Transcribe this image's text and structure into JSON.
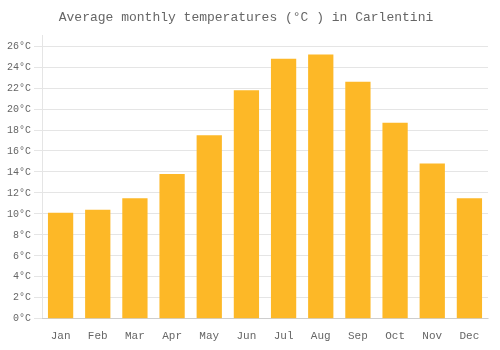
{
  "chart_data": {
    "type": "bar",
    "title": "Average monthly temperatures (°C ) in Carlentini",
    "categories": [
      "Jan",
      "Feb",
      "Mar",
      "Apr",
      "May",
      "Jun",
      "Jul",
      "Aug",
      "Sep",
      "Oct",
      "Nov",
      "Dec"
    ],
    "values": [
      10.1,
      10.4,
      11.5,
      13.8,
      17.5,
      21.8,
      24.8,
      25.2,
      22.6,
      18.7,
      14.8,
      11.5
    ],
    "color": "#FDB827",
    "ylim": [
      0,
      27
    ],
    "yticks": [
      {
        "value": 0,
        "label": "0°C"
      },
      {
        "value": 2,
        "label": "2°C"
      },
      {
        "value": 4,
        "label": "4°C"
      },
      {
        "value": 6,
        "label": "6°C"
      },
      {
        "value": 8,
        "label": "8°C"
      },
      {
        "value": 10,
        "label": "10°C"
      },
      {
        "value": 12,
        "label": "12°C"
      },
      {
        "value": 14,
        "label": "14°C"
      },
      {
        "value": 16,
        "label": "16°C"
      },
      {
        "value": 18,
        "label": "18°C"
      },
      {
        "value": 20,
        "label": "20°C"
      },
      {
        "value": 22,
        "label": "22°C"
      },
      {
        "value": 24,
        "label": "24°C"
      },
      {
        "value": 26,
        "label": "26°C"
      }
    ],
    "grid": true
  }
}
